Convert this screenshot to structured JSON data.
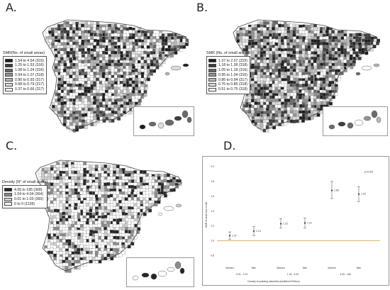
{
  "panels": {
    "a": {
      "letter": "A.",
      "legend_title": "SMR(No. of small areas)",
      "legend": [
        {
          "label": "1.54  to  4.54   (315)",
          "color": "#1e1e1e"
        },
        {
          "label": "1.25  to  1.53   (316)",
          "color": "#3d3d3d"
        },
        {
          "label": "1.08  to  1.24   (316)",
          "color": "#6a6a6a"
        },
        {
          "label": "0.94  to  1.07   (318)",
          "color": "#949494"
        },
        {
          "label": "0.80  to  0.93   (317)",
          "color": "#b8b8b8"
        },
        {
          "label": "0.68  to  0.79   (317)",
          "color": "#dcdcdc"
        },
        {
          "label": "0.37  to  0.66   (317)",
          "color": "#ffffff"
        }
      ]
    },
    "b": {
      "letter": "B.",
      "legend_title": "SMR (No. of small areas)",
      "legend": [
        {
          "label": "1.37  to  2.57   (315)",
          "color": "#1e1e1e"
        },
        {
          "label": "1.18  to  1.36   (318)",
          "color": "#3d3d3d"
        },
        {
          "label": "1.05  to  1.18   (316)",
          "color": "#6a6a6a"
        },
        {
          "label": "0.95  to  1.04   (316)",
          "color": "#949494"
        },
        {
          "label": "0.86  to  0.94   (317)",
          "color": "#b8b8b8"
        },
        {
          "label": "0.76  to  0.85   (318)",
          "color": "#dcdcdc"
        },
        {
          "label": "0.51  to  0.75   (318)",
          "color": "#ffffff"
        }
      ]
    },
    "c": {
      "letter": "C.",
      "legend_title": "Density (N° of small areas)",
      "legend": [
        {
          "label": "4.05   to  185      (368)",
          "color": "#262626"
        },
        {
          "label": "1.04   to  4.04     (364)",
          "color": "#8c8c8c"
        },
        {
          "label": "0.01   to  1.03     (360)",
          "color": "#cfcfcf"
        },
        {
          "label": "0       to  0        (1128)",
          "color": "#ffffff"
        }
      ]
    },
    "d": {
      "letter": "D."
    }
  },
  "chart_data": {
    "type": "scatter",
    "ylabel": "SMR of death due to AD",
    "xlabel": "Density of polluting industries (facilities/1000km²)",
    "group_labels": [
      "0.01 - 1.03",
      "1.04 - 4.04",
      "4.05 - 185"
    ],
    "sex_labels": [
      "Women",
      "Men",
      "Women",
      "Men",
      "Women",
      "Men"
    ],
    "ylim": [
      0.7,
      2.0
    ],
    "y_ticks": [
      "2.0",
      "1.8",
      "1.6",
      "1.4",
      "1.2",
      "1.0",
      "0.8"
    ],
    "reference_line": 1.0,
    "points": [
      {
        "group": "0.01 - 1.03",
        "sex": "Women",
        "value": 1.07,
        "low": 1.02,
        "high": 1.12,
        "label": "1.07"
      },
      {
        "group": "0.01 - 1.03",
        "sex": "Men",
        "value": 1.13,
        "low": 1.07,
        "high": 1.19,
        "label": "1.13"
      },
      {
        "group": "1.04 - 4.04",
        "sex": "Women",
        "value": 1.23,
        "low": 1.17,
        "high": 1.3,
        "label": "1.23"
      },
      {
        "group": "1.04 - 4.04",
        "sex": "Men",
        "value": 1.24,
        "low": 1.17,
        "high": 1.31,
        "label": "1.24"
      },
      {
        "group": "4.05 - 185",
        "sex": "Women",
        "value": 1.68,
        "low": 1.57,
        "high": 1.8,
        "label": "1.68"
      },
      {
        "group": "4.05 - 185",
        "sex": "Men",
        "value": 1.63,
        "low": 1.53,
        "high": 1.73,
        "label": "1.63"
      }
    ],
    "annotation": "p<0.001",
    "grid": false
  }
}
